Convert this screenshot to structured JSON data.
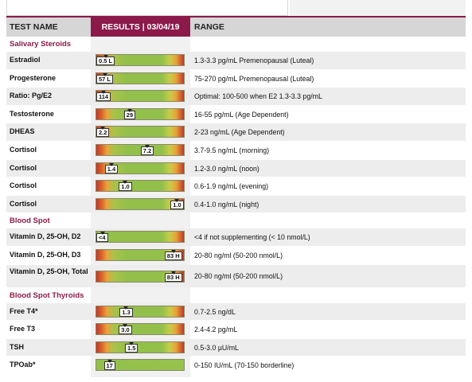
{
  "header": {
    "test_name": "TEST NAME",
    "results": "RESULTS | 03/04/19",
    "range": "RANGE"
  },
  "sections": [
    {
      "title": "Salivary Steroids",
      "rows": [
        {
          "test": "Estradiol",
          "value": "0.5 L",
          "range": "1.3-3.3 pg/mL Premenopausal (Luteal)",
          "level": 0.02,
          "gradient": "full"
        },
        {
          "test": "Progesterone",
          "value": "57 L",
          "range": "75-270 pg/mL Premenopausal (Luteal)",
          "level": 0.02,
          "gradient": "full"
        },
        {
          "test": "Ratio: Pg/E2",
          "value": "114",
          "range": "Optimal: 100-500 when E2 1.3-3.3 pg/mL",
          "level": 0.07,
          "gradient": "full"
        },
        {
          "test": "Testosterone",
          "value": "29",
          "range": "16-55 pg/mL (Age Dependent)",
          "level": 0.38,
          "gradient": "full"
        },
        {
          "test": "DHEAS",
          "value": "2.2",
          "range": "2-23 ng/mL (Age Dependent)",
          "level": 0.07,
          "gradient": "full"
        },
        {
          "test": "Cortisol",
          "value": "7.2",
          "range": "3.7-9.5 ng/mL (morning)",
          "level": 0.58,
          "gradient": "full"
        },
        {
          "test": "Cortisol",
          "value": "1.4",
          "range": "1.2-3.0 ng/mL (noon)",
          "level": 0.17,
          "gradient": "full"
        },
        {
          "test": "Cortisol",
          "value": "1.0",
          "range": "0.6-1.9 ng/mL (evening)",
          "level": 0.33,
          "gradient": "full"
        },
        {
          "test": "Cortisol",
          "value": "1.0",
          "range": "0.4-1.0 ng/mL (night)",
          "level": 0.92,
          "gradient": "full"
        }
      ]
    },
    {
      "title": "Blood Spot",
      "rows": [
        {
          "test": "Vitamin D, 25-OH, D2",
          "value": "<4",
          "range": "<4 if not supplementing  (< 10 nmol/L)",
          "level": 0.02,
          "gradient": "low"
        },
        {
          "test": "Vitamin D, 25-OH, D3",
          "value": "83 H",
          "range": "20-80 ng/ml (50-200 nmol/L)",
          "level": 0.88,
          "gradient": "full"
        },
        {
          "test": "Vitamin D, 25-OH, Total",
          "value": "83 H",
          "range": "20-80 ng/ml (50-200 nmol/L)",
          "level": 0.88,
          "gradient": "full"
        }
      ]
    },
    {
      "title": "Blood Spot Thyroids",
      "rows": [
        {
          "test": "Free T4*",
          "value": "1.3",
          "range": "0.7-2.5 ng/dL",
          "level": 0.34,
          "gradient": "full"
        },
        {
          "test": "Free T3",
          "value": "3.0",
          "range": "2.4-4.2 pg/mL",
          "level": 0.33,
          "gradient": "full"
        },
        {
          "test": "TSH",
          "value": "1.5",
          "range": "0.5-3.0 µU/mL",
          "level": 0.4,
          "gradient": "full"
        },
        {
          "test": "TPOab*",
          "value": "17",
          "range": "0-150 IU/mL (70-150 borderline)",
          "level": 0.15,
          "gradient": "green"
        }
      ]
    }
  ],
  "colors": {
    "accent": "#8b1a4a",
    "header_bg": "#d6d6d6",
    "row_shade": "#ededed"
  }
}
